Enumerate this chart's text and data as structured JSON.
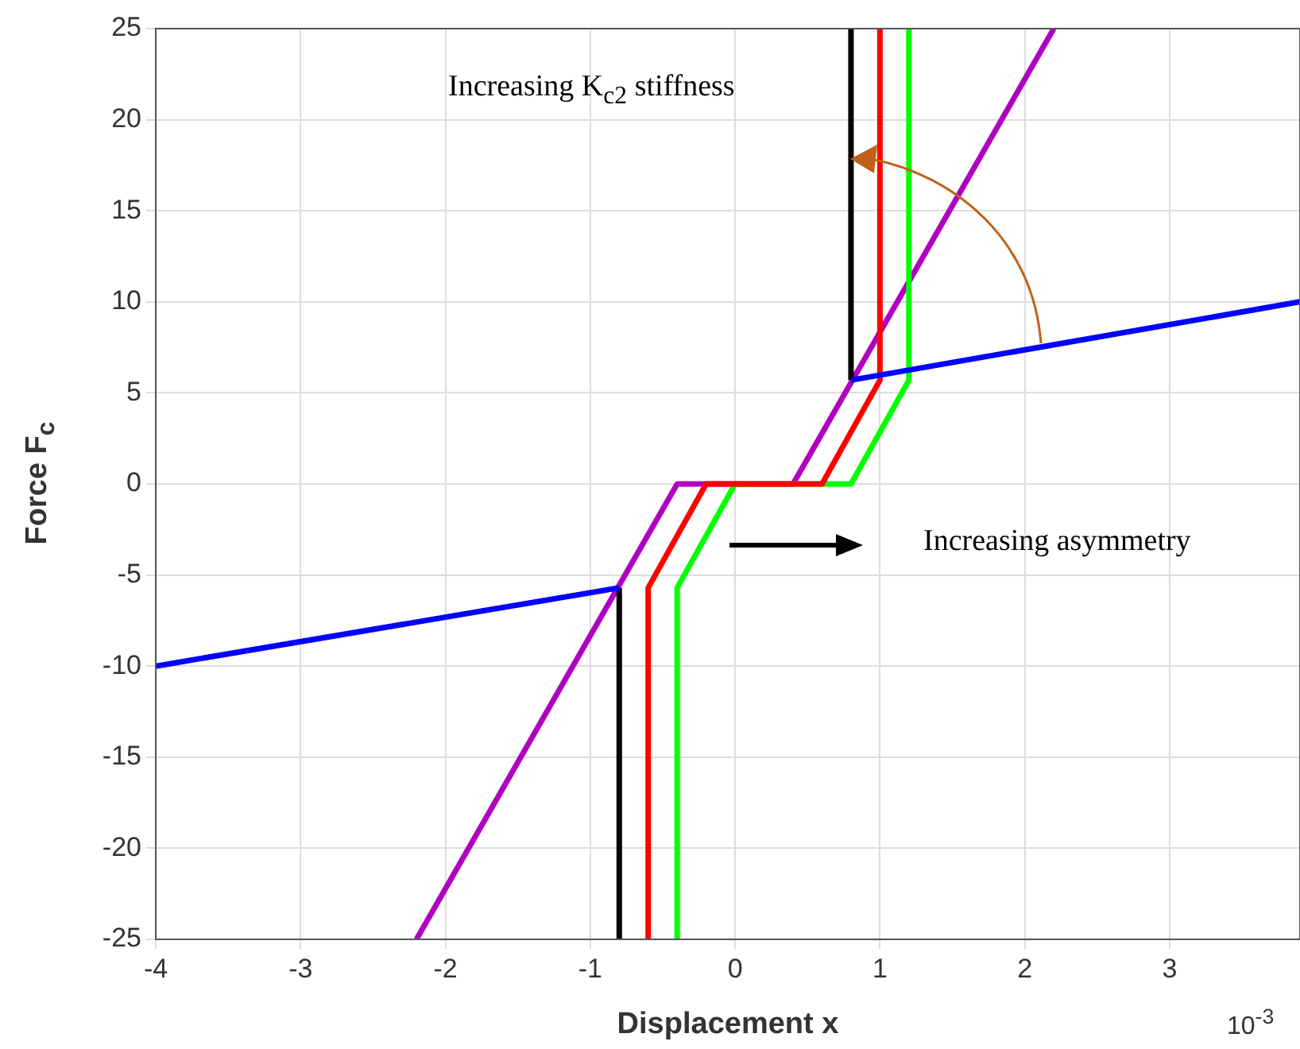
{
  "chart_data": {
    "type": "line",
    "xlabel": "Displacement x",
    "ylabel": "Force F$_{c}$",
    "xlim": [
      -4,
      3.9
    ],
    "xticks": [
      -4,
      -3,
      -2,
      -1,
      0,
      1,
      2,
      3
    ],
    "ylim": [
      -25,
      25
    ],
    "yticks": [
      -25,
      -20,
      -15,
      -10,
      -5,
      0,
      5,
      10,
      15,
      20,
      25
    ],
    "grid": true,
    "legend": false,
    "marker": "none",
    "line_style": "solid",
    "annotations": [
      "Increasing K$_{c2}$ stiffness",
      "Increasing asymmetry",
      "10$^{-3}$"
    ],
    "series": [
      {
        "color": "#0000ff",
        "x": [
          -4,
          -0.8,
          0,
          0.8,
          3.9
        ],
        "values": [
          -10,
          -5.7,
          null,
          5.7,
          10
        ]
      },
      {
        "color": "#000000",
        "x": [
          -0.8,
          -0.8,
          0,
          0.8,
          0.8
        ],
        "values": [
          -25,
          -5.7,
          null,
          5.7,
          25
        ]
      },
      {
        "color": "#ff0000",
        "x": [
          -0.6,
          -0.6,
          -0.2,
          0.6,
          1.0,
          1.0
        ],
        "values": [
          -25,
          -5.7,
          0,
          0,
          5.7,
          25
        ]
      },
      {
        "color": "#00ff00",
        "x": [
          -0.4,
          -0.4,
          0,
          0.8,
          1.2,
          1.2
        ],
        "values": [
          -25,
          -5.7,
          0,
          0,
          5.7,
          25
        ]
      },
      {
        "color": "#b000c0",
        "x": [
          -2.2,
          -0.4,
          0.4,
          2.2
        ],
        "values": [
          -25,
          0,
          0,
          25
        ]
      }
    ]
  }
}
